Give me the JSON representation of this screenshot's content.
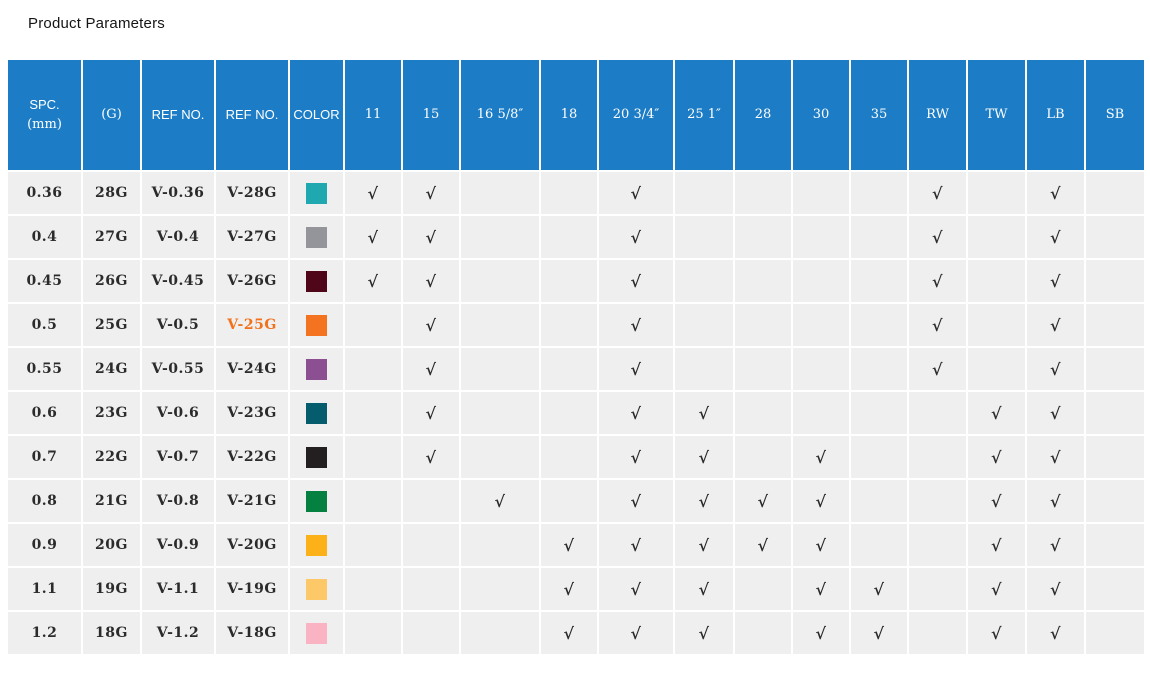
{
  "title": "Product Parameters",
  "colors": {
    "header_bg": "#1c7dc6",
    "row_bg": "#efefef",
    "text": "#2b2b2b",
    "highlight": "#f2711a"
  },
  "check_glyph": "√",
  "table": {
    "columns": [
      {
        "lines": [
          "SPC.",
          "(mm)"
        ]
      },
      {
        "lines": [
          "(G)"
        ]
      },
      {
        "lines": [
          "REF NO."
        ]
      },
      {
        "lines": [
          "REF NO."
        ]
      },
      {
        "lines": [
          "COLOR"
        ]
      },
      {
        "lines": [
          "11"
        ]
      },
      {
        "lines": [
          "15"
        ]
      },
      {
        "lines": [
          "16 5/8″"
        ]
      },
      {
        "lines": [
          "18"
        ]
      },
      {
        "lines": [
          "20 3/4″"
        ]
      },
      {
        "lines": [
          "25 1″"
        ]
      },
      {
        "lines": [
          "28"
        ]
      },
      {
        "lines": [
          "30"
        ]
      },
      {
        "lines": [
          "35"
        ]
      },
      {
        "lines": [
          "RW"
        ]
      },
      {
        "lines": [
          "TW"
        ]
      },
      {
        "lines": [
          "LB"
        ]
      },
      {
        "lines": [
          "SB"
        ]
      }
    ],
    "check_columns": [
      "11",
      "15",
      "16 5/8″",
      "18",
      "20 3/4″",
      "25 1″",
      "28",
      "30",
      "35",
      "RW",
      "TW",
      "LB",
      "SB"
    ],
    "rows": [
      {
        "spc": "0.36",
        "gauge": "28G",
        "ref_no_1": "V-0.36",
        "ref_no_2": "V-28G",
        "ref2_highlight": false,
        "swatch": "#1fa8b0",
        "checks": [
          1,
          1,
          0,
          0,
          1,
          0,
          0,
          0,
          0,
          1,
          0,
          1,
          0
        ]
      },
      {
        "spc": "0.4",
        "gauge": "27G",
        "ref_no_1": "V-0.4",
        "ref_no_2": "V-27G",
        "ref2_highlight": false,
        "swatch": "#93959a",
        "checks": [
          1,
          1,
          0,
          0,
          1,
          0,
          0,
          0,
          0,
          1,
          0,
          1,
          0
        ]
      },
      {
        "spc": "0.45",
        "gauge": "26G",
        "ref_no_1": "V-0.45",
        "ref_no_2": "V-26G",
        "ref2_highlight": false,
        "swatch": "#4f0618",
        "checks": [
          1,
          1,
          0,
          0,
          1,
          0,
          0,
          0,
          0,
          1,
          0,
          1,
          0
        ]
      },
      {
        "spc": "0.5",
        "gauge": "25G",
        "ref_no_1": "V-0.5",
        "ref_no_2": "V-25G",
        "ref2_highlight": true,
        "swatch": "#f37320",
        "checks": [
          0,
          1,
          0,
          0,
          1,
          0,
          0,
          0,
          0,
          1,
          0,
          1,
          0
        ]
      },
      {
        "spc": "0.55",
        "gauge": "24G",
        "ref_no_1": "V-0.55",
        "ref_no_2": "V-24G",
        "ref2_highlight": false,
        "swatch": "#8b4f92",
        "checks": [
          0,
          1,
          0,
          0,
          1,
          0,
          0,
          0,
          0,
          1,
          0,
          1,
          0
        ]
      },
      {
        "spc": "0.6",
        "gauge": "23G",
        "ref_no_1": "V-0.6",
        "ref_no_2": "V-23G",
        "ref2_highlight": false,
        "swatch": "#055c6c",
        "checks": [
          0,
          1,
          0,
          0,
          1,
          1,
          0,
          0,
          0,
          0,
          1,
          1,
          0
        ]
      },
      {
        "spc": "0.7",
        "gauge": "22G",
        "ref_no_1": "V-0.7",
        "ref_no_2": "V-22G",
        "ref2_highlight": false,
        "swatch": "#231f20",
        "checks": [
          0,
          1,
          0,
          0,
          1,
          1,
          0,
          1,
          0,
          0,
          1,
          1,
          0
        ]
      },
      {
        "spc": "0.8",
        "gauge": "21G",
        "ref_no_1": "V-0.8",
        "ref_no_2": "V-21G",
        "ref2_highlight": false,
        "swatch": "#048040",
        "checks": [
          0,
          0,
          1,
          0,
          1,
          1,
          1,
          1,
          0,
          0,
          1,
          1,
          0
        ]
      },
      {
        "spc": "0.9",
        "gauge": "20G",
        "ref_no_1": "V-0.9",
        "ref_no_2": "V-20G",
        "ref2_highlight": false,
        "swatch": "#fbb117",
        "checks": [
          0,
          0,
          0,
          1,
          1,
          1,
          1,
          1,
          0,
          0,
          1,
          1,
          0
        ]
      },
      {
        "spc": "1.1",
        "gauge": "19G",
        "ref_no_1": "V-1.1",
        "ref_no_2": "V-19G",
        "ref2_highlight": false,
        "swatch": "#fdc968",
        "checks": [
          0,
          0,
          0,
          1,
          1,
          1,
          0,
          1,
          1,
          0,
          1,
          1,
          0
        ]
      },
      {
        "spc": "1.2",
        "gauge": "18G",
        "ref_no_1": "V-1.2",
        "ref_no_2": "V-18G",
        "ref2_highlight": false,
        "swatch": "#f9b3c3",
        "checks": [
          0,
          0,
          0,
          1,
          1,
          1,
          0,
          1,
          1,
          0,
          1,
          1,
          0
        ]
      }
    ]
  }
}
